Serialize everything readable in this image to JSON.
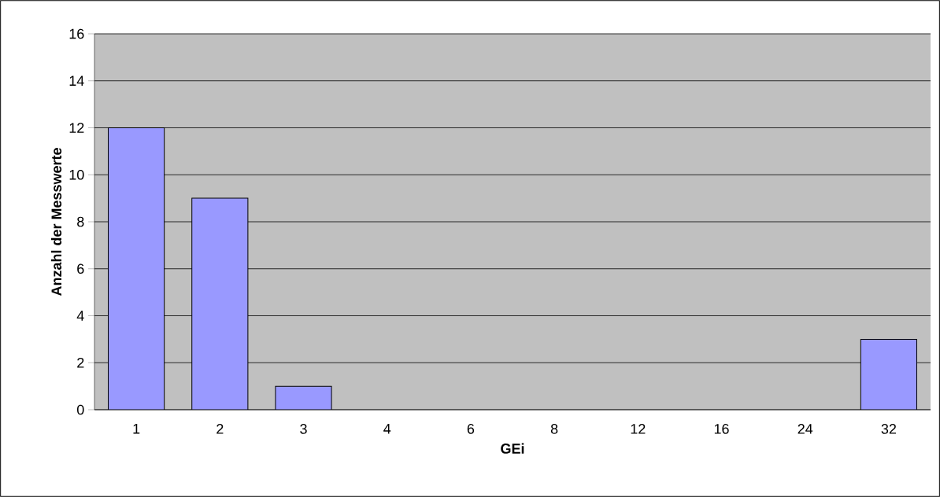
{
  "chart_data": {
    "type": "bar",
    "xlabel": "GEi",
    "ylabel": "Anzahl der Messwerte",
    "categories": [
      "1",
      "2",
      "3",
      "4",
      "6",
      "8",
      "12",
      "16",
      "24",
      "32"
    ],
    "values": [
      12,
      9,
      1,
      0,
      0,
      0,
      0,
      0,
      0,
      3
    ],
    "color": "#9999ff",
    "ylim": [
      0,
      16
    ],
    "yticks": [
      0,
      2,
      4,
      6,
      8,
      10,
      12,
      14,
      16
    ],
    "grid": "y"
  }
}
